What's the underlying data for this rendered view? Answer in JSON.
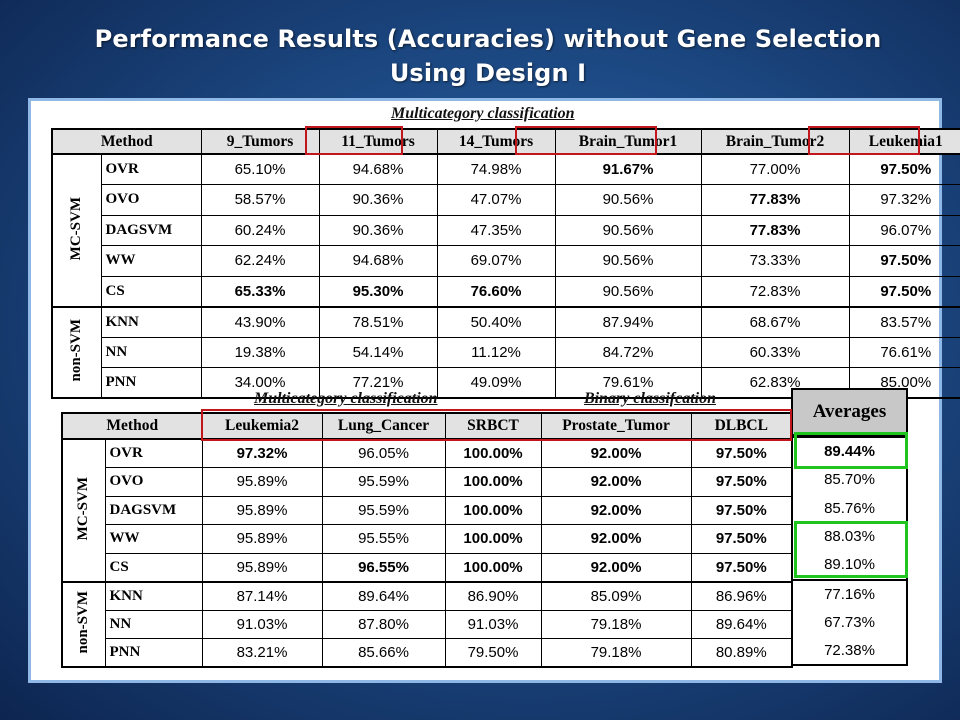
{
  "slide": {
    "title_line1": "Performance Results (Accuracies) without Gene Selection",
    "title_line2": "Using Design I"
  },
  "top_table": {
    "band_label": "Multicategory classification",
    "method_label": "Method",
    "columns": [
      "9_Tumors",
      "11_Tumors",
      "14_Tumors",
      "Brain_Tumor1",
      "Brain_Tumor2",
      "Leukemia1"
    ],
    "groups": [
      {
        "label": "MC-SVM",
        "rows": [
          {
            "method": "OVR",
            "values": [
              "65.10%",
              "94.68%",
              "74.98%",
              "91.67%",
              "77.00%",
              "97.50%"
            ],
            "bold": [
              false,
              false,
              false,
              true,
              false,
              true
            ]
          },
          {
            "method": "OVO",
            "values": [
              "58.57%",
              "90.36%",
              "47.07%",
              "90.56%",
              "77.83%",
              "97.32%"
            ],
            "bold": [
              false,
              false,
              false,
              false,
              true,
              false
            ]
          },
          {
            "method": "DAGSVM",
            "values": [
              "60.24%",
              "90.36%",
              "47.35%",
              "90.56%",
              "77.83%",
              "96.07%"
            ],
            "bold": [
              false,
              false,
              false,
              false,
              true,
              false
            ]
          },
          {
            "method": "WW",
            "values": [
              "62.24%",
              "94.68%",
              "69.07%",
              "90.56%",
              "73.33%",
              "97.50%"
            ],
            "bold": [
              false,
              false,
              false,
              false,
              false,
              true
            ]
          },
          {
            "method": "CS",
            "values": [
              "65.33%",
              "95.30%",
              "76.60%",
              "90.56%",
              "72.83%",
              "97.50%"
            ],
            "bold": [
              true,
              true,
              true,
              false,
              false,
              true
            ]
          }
        ]
      },
      {
        "label": "non-SVM",
        "rows": [
          {
            "method": "KNN",
            "values": [
              "43.90%",
              "78.51%",
              "50.40%",
              "87.94%",
              "68.67%",
              "83.57%"
            ],
            "bold": [
              false,
              false,
              false,
              false,
              false,
              false
            ]
          },
          {
            "method": "NN",
            "values": [
              "19.38%",
              "54.14%",
              "11.12%",
              "84.72%",
              "60.33%",
              "76.61%"
            ],
            "bold": [
              false,
              false,
              false,
              false,
              false,
              false
            ]
          },
          {
            "method": "PNN",
            "values": [
              "34.00%",
              "77.21%",
              "49.09%",
              "79.61%",
              "62.83%",
              "85.00%"
            ],
            "bold": [
              false,
              false,
              false,
              false,
              false,
              false
            ]
          }
        ]
      }
    ]
  },
  "bottom_table": {
    "band_label_multi": "Multicategory classification",
    "band_label_binary": "Binary classifcation",
    "method_label": "Method",
    "columns": [
      "Leukemia2",
      "Lung_Cancer",
      "SRBCT",
      "Prostate_Tumor",
      "DLBCL"
    ],
    "groups": [
      {
        "label": "MC-SVM",
        "rows": [
          {
            "method": "OVR",
            "values": [
              "97.32%",
              "96.05%",
              "100.00%",
              "92.00%",
              "97.50%"
            ],
            "bold": [
              true,
              false,
              true,
              true,
              true
            ]
          },
          {
            "method": "OVO",
            "values": [
              "95.89%",
              "95.59%",
              "100.00%",
              "92.00%",
              "97.50%"
            ],
            "bold": [
              false,
              false,
              true,
              true,
              true
            ]
          },
          {
            "method": "DAGSVM",
            "values": [
              "95.89%",
              "95.59%",
              "100.00%",
              "92.00%",
              "97.50%"
            ],
            "bold": [
              false,
              false,
              true,
              true,
              true
            ]
          },
          {
            "method": "WW",
            "values": [
              "95.89%",
              "95.55%",
              "100.00%",
              "92.00%",
              "97.50%"
            ],
            "bold": [
              false,
              false,
              true,
              true,
              true
            ]
          },
          {
            "method": "CS",
            "values": [
              "95.89%",
              "96.55%",
              "100.00%",
              "92.00%",
              "97.50%"
            ],
            "bold": [
              false,
              true,
              true,
              true,
              true
            ]
          }
        ]
      },
      {
        "label": "non-SVM",
        "rows": [
          {
            "method": "KNN",
            "values": [
              "87.14%",
              "89.64%",
              "86.90%",
              "85.09%",
              "86.96%"
            ],
            "bold": [
              false,
              false,
              false,
              false,
              false
            ]
          },
          {
            "method": "NN",
            "values": [
              "91.03%",
              "87.80%",
              "91.03%",
              "79.18%",
              "89.64%"
            ],
            "bold": [
              false,
              false,
              false,
              false,
              false
            ]
          },
          {
            "method": "PNN",
            "values": [
              "83.21%",
              "85.66%",
              "79.50%",
              "79.18%",
              "80.89%"
            ],
            "bold": [
              false,
              false,
              false,
              false,
              false
            ]
          }
        ]
      }
    ]
  },
  "averages": {
    "header": "Averages",
    "values": [
      "89.44%",
      "85.70%",
      "85.76%",
      "88.03%",
      "89.10%",
      "77.16%",
      "67.73%",
      "72.38%"
    ],
    "bold": [
      true,
      false,
      false,
      false,
      false,
      false,
      false,
      false
    ]
  },
  "colors": {
    "highlight_red": "#c0161c",
    "highlight_green": "#1fc41f",
    "panel_border": "#8fb8e6",
    "header_gray": "#e2e2e2"
  }
}
